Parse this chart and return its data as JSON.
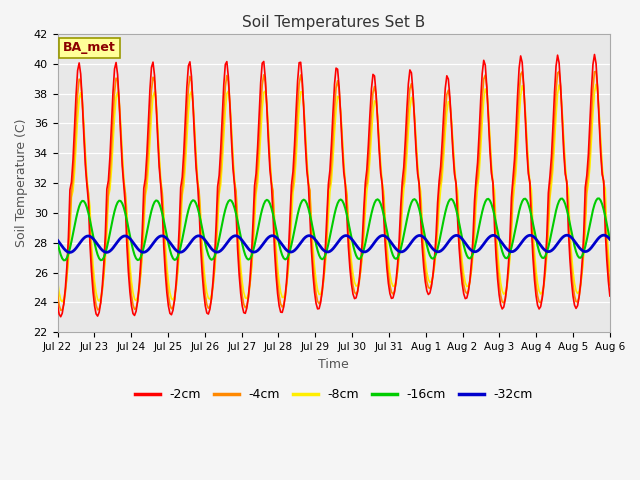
{
  "title": "Soil Temperatures Set B",
  "xlabel": "Time",
  "ylabel": "Soil Temperature (C)",
  "ylim": [
    22,
    42
  ],
  "annotation": "BA_met",
  "legend": [
    "-2cm",
    "-4cm",
    "-8cm",
    "-16cm",
    "-32cm"
  ],
  "colors": {
    "-2cm": "#ff0000",
    "-4cm": "#ff8800",
    "-8cm": "#ffee00",
    "-16cm": "#00cc00",
    "-32cm": "#0000cc"
  },
  "linewidths": {
    "-2cm": 1.2,
    "-4cm": 1.2,
    "-8cm": 1.2,
    "-16cm": 1.5,
    "-32cm": 2.0
  },
  "background_color": "#e8e8e8",
  "fig_bg": "#f5f5f5"
}
